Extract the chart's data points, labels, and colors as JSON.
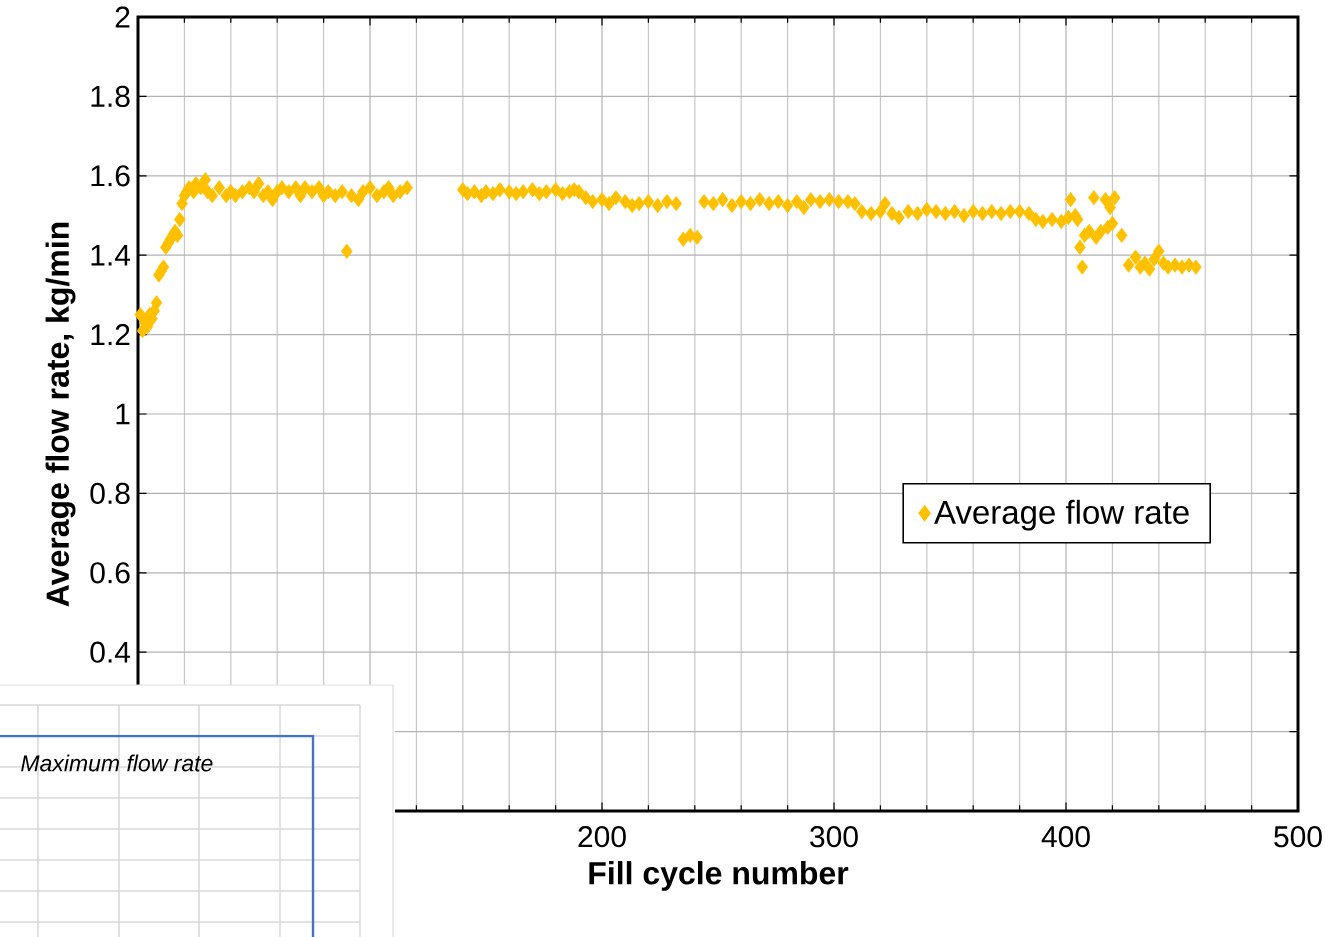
{
  "chart_data": {
    "type": "scatter",
    "xlabel": "Fill cycle number",
    "ylabel": "Average flow rate, kg/min",
    "xlim": [
      0,
      500
    ],
    "ylim": [
      0,
      2
    ],
    "xticks": [
      {
        "value": 0,
        "label": null
      },
      {
        "value": 100,
        "label": null
      },
      200,
      300,
      400,
      500
    ],
    "yticks": [
      {
        "value": 0,
        "label": null
      },
      {
        "value": 0.2,
        "label": null
      },
      0.4,
      0.6,
      0.8,
      1,
      1.2,
      1.4,
      1.6,
      1.8,
      2
    ],
    "grid": true,
    "legend": "right",
    "marker": "diamond",
    "annotations": [
      "Maximum flow rate"
    ],
    "series": [
      {
        "name": "Average flow rate",
        "color": "#ffc000",
        "x": [
          1,
          2,
          3,
          4,
          5,
          6,
          7,
          8,
          9,
          10,
          11,
          12,
          13,
          14,
          15,
          16,
          17,
          18,
          19,
          20,
          21,
          22,
          24,
          25,
          27,
          29,
          30,
          32,
          35,
          38,
          40,
          42,
          45,
          48,
          50,
          52,
          54,
          56,
          58,
          60,
          62,
          65,
          68,
          70,
          72,
          75,
          78,
          80,
          82,
          85,
          88,
          90,
          92,
          95,
          97,
          100,
          103,
          106,
          108,
          110,
          113,
          116,
          140,
          142,
          145,
          148,
          150,
          153,
          156,
          160,
          163,
          166,
          170,
          173,
          176,
          180,
          183,
          186,
          188,
          190,
          193,
          196,
          200,
          203,
          206,
          210,
          213,
          216,
          220,
          224,
          228,
          232,
          235,
          238,
          241,
          244,
          248,
          252,
          256,
          260,
          264,
          268,
          272,
          276,
          280,
          284,
          287,
          290,
          294,
          298,
          302,
          306,
          309,
          312,
          316,
          320,
          322,
          325,
          328,
          332,
          336,
          340,
          344,
          348,
          352,
          356,
          360,
          364,
          368,
          372,
          376,
          380,
          384,
          387,
          390,
          394,
          398,
          401,
          402,
          404,
          405,
          406,
          407,
          408,
          410,
          412,
          413,
          415,
          417,
          418,
          419,
          420,
          421,
          424,
          427,
          430,
          432,
          434,
          436,
          438,
          440,
          442,
          444,
          447,
          450,
          453,
          456
        ],
        "values": [
          1.25,
          1.21,
          1.23,
          1.22,
          1.25,
          1.24,
          1.26,
          1.28,
          1.35,
          1.36,
          1.37,
          1.42,
          1.43,
          1.44,
          1.45,
          1.46,
          1.45,
          1.49,
          1.53,
          1.55,
          1.56,
          1.57,
          1.56,
          1.58,
          1.57,
          1.59,
          1.56,
          1.55,
          1.57,
          1.55,
          1.56,
          1.55,
          1.56,
          1.57,
          1.56,
          1.58,
          1.55,
          1.56,
          1.54,
          1.56,
          1.57,
          1.56,
          1.57,
          1.55,
          1.57,
          1.56,
          1.57,
          1.55,
          1.56,
          1.55,
          1.56,
          1.41,
          1.55,
          1.54,
          1.56,
          1.57,
          1.55,
          1.56,
          1.57,
          1.55,
          1.56,
          1.57,
          1.565,
          1.555,
          1.56,
          1.55,
          1.56,
          1.555,
          1.565,
          1.56,
          1.555,
          1.56,
          1.565,
          1.555,
          1.56,
          1.565,
          1.555,
          1.56,
          1.565,
          1.56,
          1.545,
          1.535,
          1.54,
          1.53,
          1.545,
          1.535,
          1.525,
          1.53,
          1.535,
          1.525,
          1.535,
          1.53,
          1.44,
          1.45,
          1.445,
          1.535,
          1.53,
          1.54,
          1.525,
          1.535,
          1.53,
          1.54,
          1.53,
          1.535,
          1.525,
          1.535,
          1.52,
          1.54,
          1.535,
          1.54,
          1.535,
          1.535,
          1.53,
          1.51,
          1.505,
          1.51,
          1.53,
          1.505,
          1.495,
          1.51,
          1.505,
          1.515,
          1.51,
          1.505,
          1.51,
          1.5,
          1.51,
          1.505,
          1.51,
          1.505,
          1.51,
          1.51,
          1.505,
          1.49,
          1.485,
          1.49,
          1.485,
          1.495,
          1.54,
          1.5,
          1.49,
          1.42,
          1.37,
          1.45,
          1.46,
          1.545,
          1.445,
          1.46,
          1.54,
          1.47,
          1.52,
          1.48,
          1.545,
          1.45,
          1.375,
          1.395,
          1.37,
          1.38,
          1.365,
          1.39,
          1.41,
          1.38,
          1.37,
          1.375,
          1.37,
          1.375,
          1.37
        ]
      }
    ]
  }
}
